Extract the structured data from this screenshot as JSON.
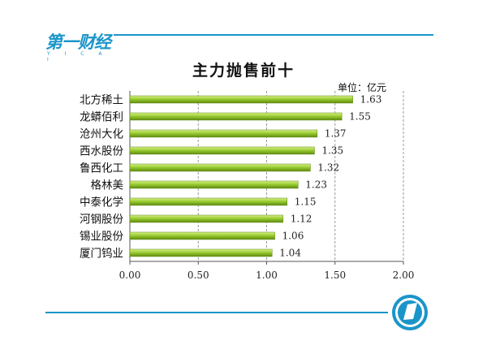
{
  "brand": {
    "logo_text": "第一财经",
    "logo_sub": "Y I C A I"
  },
  "chart_data": {
    "type": "bar",
    "orientation": "horizontal",
    "title": "主力抛售前十",
    "unit_label": "单位：亿元",
    "categories": [
      "北方稀土",
      "龙蟒佰利",
      "沧州大化",
      "西水股份",
      "鲁西化工",
      "格林美",
      "中泰化学",
      "河钢股份",
      "锡业股份",
      "厦门钨业"
    ],
    "values": [
      1.63,
      1.55,
      1.37,
      1.35,
      1.32,
      1.23,
      1.15,
      1.12,
      1.06,
      1.04
    ],
    "value_labels": [
      "1.63",
      "1.55",
      "1.37",
      "1.35",
      "1.32",
      "1.23",
      "1.15",
      "1.12",
      "1.06",
      "1.04"
    ],
    "xlim": [
      0,
      2
    ],
    "ticks": [
      "0.00",
      "0.50",
      "1.00",
      "1.50",
      "2.00"
    ],
    "tick_values": [
      0,
      0.5,
      1,
      1.5,
      2
    ],
    "grid": true,
    "bar_color": "#9acd32",
    "bar_color_light": "#d8f08a",
    "bar_color_dark": "#5f8a10"
  },
  "colors": {
    "accent": "#1b95c9"
  }
}
